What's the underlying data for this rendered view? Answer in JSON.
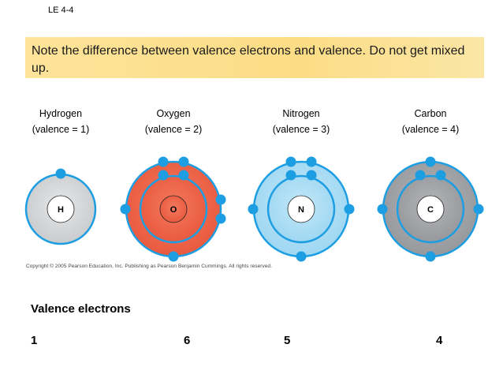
{
  "slide_label": "LE 4-4",
  "note": "Note the difference between valence electrons and valence. Do not get mixed up.",
  "atoms": [
    {
      "name": "Hydrogen",
      "valence": "(valence = 1)",
      "symbol": "H",
      "valence_electrons": "1"
    },
    {
      "name": "Oxygen",
      "valence": "(valence = 2)",
      "symbol": "O",
      "valence_electrons": "6"
    },
    {
      "name": "Nitrogen",
      "valence": "(valence = 3)",
      "symbol": "N",
      "valence_electrons": "5"
    },
    {
      "name": "Carbon",
      "valence": "(valence = 4)",
      "symbol": "C",
      "valence_electrons": "4"
    }
  ],
  "copyright": "Copyright © 2005 Pearson Education, Inc. Publishing as Pearson Benjamin Cummings. All rights reserved.",
  "valence_section_title": "Valence electrons",
  "colors": {
    "note_fill": "#fde49a",
    "electron": "#1e9ee2",
    "orbit_line": "#1e9ee2",
    "hydrogen_fill": "#d4d6d8",
    "oxygen_fill": "#ef6a4f",
    "nitrogen_fill": "#a9dcf4",
    "carbon_fill": "#a3a5a8"
  }
}
